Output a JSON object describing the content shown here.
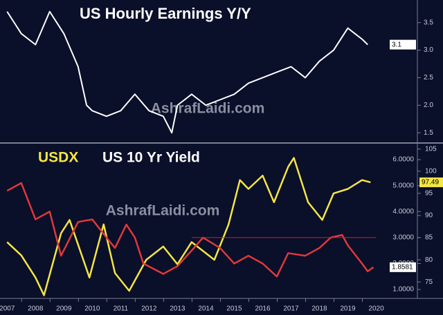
{
  "chart_data": [
    {
      "type": "line",
      "title": "US Hourly Earnings Y/Y",
      "watermark": "AshrafLaidi.com",
      "series": [
        {
          "color": "#ffffff",
          "end_label": "3.1",
          "x": [
            2007.0,
            2007.5,
            2008.0,
            2008.5,
            2008.75,
            2009.0,
            2009.5,
            2009.8,
            2010.0,
            2010.5,
            2011.0,
            2011.5,
            2012.0,
            2012.5,
            2012.8,
            2013.0,
            2013.5,
            2014.0,
            2014.5,
            2015.0,
            2015.5,
            2016.0,
            2016.5,
            2017.0,
            2017.5,
            2018.0,
            2018.5,
            2019.0,
            2019.25,
            2019.5,
            2019.7
          ],
          "values": [
            3.7,
            3.3,
            3.1,
            3.7,
            3.5,
            3.3,
            2.7,
            2.0,
            1.9,
            1.8,
            1.9,
            2.2,
            1.9,
            1.8,
            1.5,
            2.0,
            2.2,
            2.0,
            2.1,
            2.2,
            2.4,
            2.5,
            2.6,
            2.7,
            2.5,
            2.8,
            3.0,
            3.4,
            3.3,
            3.2,
            3.1
          ]
        }
      ],
      "xlim": [
        2006.75,
        2021.45
      ],
      "ylim": [
        1.34,
        3.91
      ],
      "yticks": [
        {
          "value": 1.5,
          "label": "1.5"
        },
        {
          "value": 2,
          "label": "2.0"
        },
        {
          "value": 2.5,
          "label": "2.5"
        },
        {
          "value": 3,
          "label": "3.0"
        },
        {
          "value": 3.5,
          "label": "3.5"
        }
      ]
    },
    {
      "type": "line",
      "watermark": "AshrafLaidi.com",
      "series": [
        {
          "name": "USDX",
          "color": "#f5e642",
          "axis": "y2",
          "end_label": "97.49",
          "x": [
            2007.0,
            2007.5,
            2008.0,
            2008.3,
            2008.9,
            2009.2,
            2009.9,
            2010.4,
            2010.8,
            2011.3,
            2011.9,
            2012.5,
            2013.0,
            2013.5,
            2014.3,
            2014.8,
            2015.2,
            2015.5,
            2016.0,
            2016.4,
            2016.9,
            2017.1,
            2017.6,
            2018.1,
            2018.5,
            2019.0,
            2019.5,
            2019.8
          ],
          "values": [
            84,
            81,
            76,
            72,
            86,
            89,
            76,
            88,
            77,
            73,
            80,
            83,
            79,
            84,
            80,
            88,
            98,
            96,
            99,
            93,
            101,
            103,
            93,
            89,
            95,
            96,
            98,
            97.49
          ]
        },
        {
          "name": "US 10 Yr Yield",
          "color": "#e0383a",
          "end_label": "1.8581",
          "x": [
            2007.0,
            2007.5,
            2008.0,
            2008.5,
            2008.9,
            2009.5,
            2010.0,
            2010.5,
            2010.8,
            2011.2,
            2011.5,
            2011.8,
            2012.5,
            2013.0,
            2013.5,
            2013.9,
            2014.5,
            2015.0,
            2015.5,
            2016.0,
            2016.5,
            2016.9,
            2017.5,
            2018.0,
            2018.4,
            2018.8,
            2019.0,
            2019.5,
            2019.7,
            2019.9
          ],
          "values": [
            4.8,
            5.1,
            3.7,
            4.0,
            2.3,
            3.6,
            3.7,
            3.0,
            2.6,
            3.5,
            3.0,
            2.0,
            1.6,
            1.9,
            2.5,
            3.0,
            2.6,
            2.0,
            2.3,
            2.0,
            1.5,
            2.4,
            2.3,
            2.6,
            3.0,
            3.1,
            2.7,
            2.0,
            1.7,
            1.8581
          ]
        }
      ],
      "hline": {
        "value": 3,
        "x": [
          2013.5,
          2020.0
        ],
        "color": "#c0282a"
      },
      "xlim": [
        2006.75,
        2021.45
      ],
      "xticks": [
        2007,
        2008,
        2009,
        2010,
        2011,
        2012,
        2013,
        2014,
        2015,
        2016,
        2017,
        2018,
        2019,
        2020
      ],
      "ylim": [
        0.71,
        6.56
      ],
      "yticks": [
        {
          "value": 1,
          "label": "1.0000"
        },
        {
          "value": 2,
          "label": "2.0000"
        },
        {
          "value": 3,
          "label": "3.0000"
        },
        {
          "value": 4,
          "label": "4.0000"
        },
        {
          "value": 5,
          "label": "5.0000"
        },
        {
          "value": 6,
          "label": "6.0000"
        }
      ],
      "y2lim": [
        71.6,
        105.9
      ],
      "y2ticks": [
        75,
        80,
        85,
        90,
        95,
        100,
        105
      ]
    }
  ]
}
